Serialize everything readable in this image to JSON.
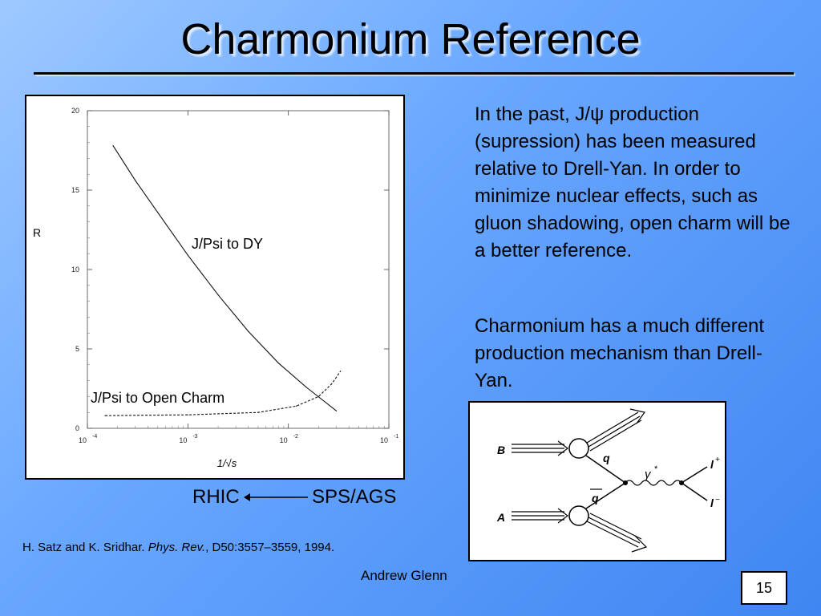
{
  "slide": {
    "title": "Charmonium Reference",
    "paragraph_1": "In the past, J/ψ production (supression) has been measured relative to Drell-Yan. In order to minimize nuclear effects, such as gluon shadowing, open charm will be a better reference.",
    "paragraph_2": "Charmonium has a much different production mechanism than Drell-Yan.",
    "rhic_label": "RHIC",
    "sps_label": "SPS/AGS",
    "citation": {
      "authors": "H. Satz and K. Sridhar. ",
      "journal": "Phys. Rev.",
      "rest": ", D50:3557–3559, 1994."
    },
    "author": "Andrew Glenn",
    "page_number": "15"
  },
  "chart_data": {
    "type": "line",
    "ylabel": "R",
    "xlabel": "1/√s",
    "xscale": "log",
    "xlim": [
      0.0001,
      0.1
    ],
    "ylim": [
      0,
      20
    ],
    "xticks": [
      {
        "value": 0.0001,
        "base": "10",
        "exp": "-4"
      },
      {
        "value": 0.001,
        "base": "10",
        "exp": "-3"
      },
      {
        "value": 0.01,
        "base": "10",
        "exp": "-2"
      },
      {
        "value": 0.1,
        "base": "10",
        "exp": "-1"
      }
    ],
    "yticks": [
      "0",
      "5",
      "10",
      "15",
      "20"
    ],
    "series": [
      {
        "name": "J/Psi to DY",
        "style": "solid",
        "x": [
          0.00018,
          0.0003,
          0.0005,
          0.001,
          0.002,
          0.004,
          0.008,
          0.015,
          0.03
        ],
        "y": [
          17.8,
          15.6,
          13.6,
          10.9,
          8.4,
          6.1,
          4.1,
          2.6,
          1.1
        ]
      },
      {
        "name": "J/Psi to Open Charm",
        "style": "dashed",
        "x": [
          0.00015,
          0.001,
          0.005,
          0.012,
          0.02,
          0.027,
          0.033
        ],
        "y": [
          0.8,
          0.85,
          1.0,
          1.4,
          2.0,
          2.8,
          3.6
        ]
      }
    ]
  },
  "feynman": {
    "in_1": "B",
    "in_2": "A",
    "quark": "q",
    "antiquark": "q",
    "boson": "γ",
    "boson_sup": "*",
    "lepton_plus": "l",
    "lepton_plus_sup": "+",
    "lepton_minus": "l",
    "lepton_minus_sup": "−"
  }
}
